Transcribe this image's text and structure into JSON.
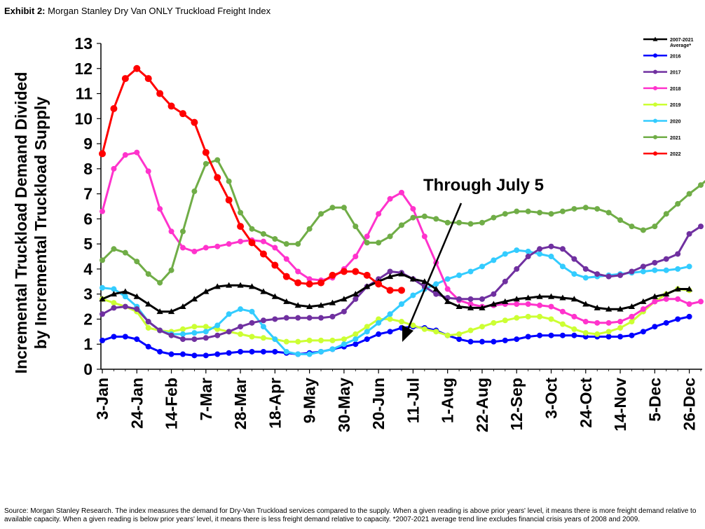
{
  "header": {
    "exhibit_label": "Exhibit 2:",
    "exhibit_title": "Morgan Stanley Dry Van ONLY Truckload Freight Index"
  },
  "source_note": "Source: Morgan Stanley Research. The index measures the demand for Dry-Van Truckload services compared to the supply. When a given reading is above prior years' level, it means there is more freight demand relative to available capacity. When a given reading is below prior years' level, it means there is less freight demand relative to capacity. *2007-2021 average trend line excludes financial crisis years of 2008 and 2009.",
  "chart_data": {
    "type": "line",
    "ylabel_line1": "Incremental Truckload Demand Divided",
    "ylabel_line2": "by Incremental Truckload Supply",
    "xlabel": "",
    "ylim": [
      0,
      13
    ],
    "yticks": [
      0,
      1,
      2,
      3,
      4,
      5,
      6,
      7,
      8,
      9,
      10,
      11,
      12,
      13
    ],
    "x_tick_labels": [
      "3-Jan",
      "24-Jan",
      "14-Feb",
      "7-Mar",
      "28-Mar",
      "18-Apr",
      "9-May",
      "30-May",
      "20-Jun",
      "11-Jul",
      "1-Aug",
      "22-Aug",
      "12-Sep",
      "3-Oct",
      "24-Oct",
      "14-Nov",
      "5-Dec",
      "26-Dec"
    ],
    "annotation": "Through July 5",
    "legend_position": "top-right",
    "series": [
      {
        "name": "2007-2021 Average*",
        "color": "#000000",
        "marker": "triangle",
        "values": [
          2.8,
          3.0,
          3.1,
          2.9,
          2.6,
          2.3,
          2.3,
          2.5,
          2.8,
          3.1,
          3.3,
          3.35,
          3.35,
          3.3,
          3.1,
          2.9,
          2.7,
          2.55,
          2.5,
          2.55,
          2.65,
          2.8,
          3.0,
          3.3,
          3.5,
          3.7,
          3.8,
          3.6,
          3.5,
          3.2,
          2.7,
          2.5,
          2.45,
          2.45,
          2.6,
          2.7,
          2.8,
          2.85,
          2.9,
          2.9,
          2.85,
          2.8,
          2.6,
          2.45,
          2.4,
          2.4,
          2.5,
          2.7,
          2.9,
          3.0,
          3.2,
          3.2
        ]
      },
      {
        "name": "2016",
        "color": "#0000ff",
        "marker": "circle",
        "values": [
          1.15,
          1.3,
          1.3,
          1.2,
          0.9,
          0.7,
          0.6,
          0.6,
          0.55,
          0.55,
          0.6,
          0.65,
          0.7,
          0.7,
          0.7,
          0.7,
          0.65,
          0.6,
          0.65,
          0.7,
          0.8,
          0.9,
          1.0,
          1.2,
          1.4,
          1.5,
          1.65,
          1.7,
          1.65,
          1.55,
          1.35,
          1.2,
          1.1,
          1.1,
          1.1,
          1.15,
          1.2,
          1.3,
          1.35,
          1.35,
          1.35,
          1.35,
          1.3,
          1.3,
          1.3,
          1.3,
          1.35,
          1.5,
          1.7,
          1.85,
          2.0,
          2.1
        ]
      },
      {
        "name": "2017",
        "color": "#7030a0",
        "marker": "circle",
        "values": [
          2.2,
          2.45,
          2.5,
          2.4,
          1.9,
          1.55,
          1.35,
          1.2,
          1.2,
          1.25,
          1.35,
          1.5,
          1.7,
          1.85,
          1.95,
          2.0,
          2.05,
          2.05,
          2.05,
          2.05,
          2.1,
          2.3,
          2.8,
          3.3,
          3.6,
          3.9,
          3.85,
          3.6,
          3.3,
          3.0,
          2.85,
          2.8,
          2.8,
          2.8,
          3.0,
          3.5,
          4.0,
          4.5,
          4.8,
          4.9,
          4.8,
          4.4,
          4.0,
          3.8,
          3.7,
          3.75,
          3.9,
          4.1,
          4.25,
          4.4,
          4.6,
          5.4,
          5.7
        ]
      },
      {
        "name": "2018",
        "color": "#ff33cc",
        "marker": "circle",
        "values": [
          6.3,
          8.0,
          8.55,
          8.65,
          7.9,
          6.4,
          5.5,
          4.85,
          4.7,
          4.85,
          4.9,
          5.0,
          5.1,
          5.15,
          5.1,
          4.85,
          4.4,
          3.9,
          3.6,
          3.55,
          3.65,
          4.0,
          4.5,
          5.3,
          6.2,
          6.8,
          7.05,
          6.4,
          5.3,
          4.25,
          3.2,
          2.75,
          2.6,
          2.5,
          2.55,
          2.6,
          2.6,
          2.6,
          2.55,
          2.5,
          2.3,
          2.1,
          1.9,
          1.85,
          1.85,
          1.9,
          2.1,
          2.4,
          2.7,
          2.8,
          2.8,
          2.6,
          2.7
        ]
      },
      {
        "name": "2019",
        "color": "#ccff33",
        "marker": "circle",
        "values": [
          2.8,
          2.65,
          2.5,
          2.3,
          1.65,
          1.55,
          1.5,
          1.6,
          1.7,
          1.7,
          1.6,
          1.5,
          1.4,
          1.3,
          1.25,
          1.2,
          1.1,
          1.1,
          1.15,
          1.15,
          1.15,
          1.2,
          1.4,
          1.7,
          2.0,
          2.0,
          1.9,
          1.75,
          1.6,
          1.5,
          1.35,
          1.4,
          1.55,
          1.7,
          1.85,
          1.95,
          2.05,
          2.1,
          2.1,
          2.0,
          1.8,
          1.6,
          1.45,
          1.4,
          1.5,
          1.65,
          1.9,
          2.3,
          2.7,
          3.0,
          3.2,
          3.15
        ]
      },
      {
        "name": "2020",
        "color": "#33ccff",
        "marker": "circle",
        "values": [
          3.25,
          3.2,
          2.9,
          2.5,
          1.9,
          1.55,
          1.4,
          1.4,
          1.45,
          1.5,
          1.75,
          2.2,
          2.4,
          2.3,
          1.7,
          1.2,
          0.7,
          0.6,
          0.6,
          0.7,
          0.8,
          1.0,
          1.2,
          1.5,
          1.85,
          2.2,
          2.6,
          2.95,
          3.2,
          3.4,
          3.6,
          3.75,
          3.9,
          4.1,
          4.35,
          4.6,
          4.75,
          4.7,
          4.6,
          4.5,
          4.1,
          3.8,
          3.65,
          3.7,
          3.75,
          3.8,
          3.85,
          3.9,
          3.95,
          3.95,
          4.0,
          4.1
        ]
      },
      {
        "name": "2021",
        "color": "#70ad47",
        "marker": "circle",
        "values": [
          4.35,
          4.8,
          4.65,
          4.3,
          3.8,
          3.45,
          3.95,
          5.5,
          7.1,
          8.2,
          8.35,
          7.5,
          6.25,
          5.6,
          5.4,
          5.2,
          5.0,
          5.0,
          5.6,
          6.2,
          6.45,
          6.45,
          5.7,
          5.05,
          5.05,
          5.3,
          5.75,
          6.05,
          6.1,
          6.0,
          5.85,
          5.85,
          5.8,
          5.85,
          6.05,
          6.2,
          6.3,
          6.3,
          6.25,
          6.2,
          6.3,
          6.4,
          6.45,
          6.4,
          6.25,
          5.95,
          5.7,
          5.55,
          5.7,
          6.2,
          6.6,
          7.0,
          7.35,
          7.75
        ]
      },
      {
        "name": "2022",
        "color": "#ff0000",
        "marker": "circle",
        "values": [
          8.6,
          10.4,
          11.6,
          12.0,
          11.6,
          11.0,
          10.5,
          10.2,
          9.85,
          8.65,
          7.65,
          6.75,
          5.7,
          5.05,
          4.6,
          4.15,
          3.7,
          3.45,
          3.4,
          3.45,
          3.75,
          3.9,
          3.9,
          3.75,
          3.4,
          3.15,
          3.15
        ]
      }
    ]
  }
}
